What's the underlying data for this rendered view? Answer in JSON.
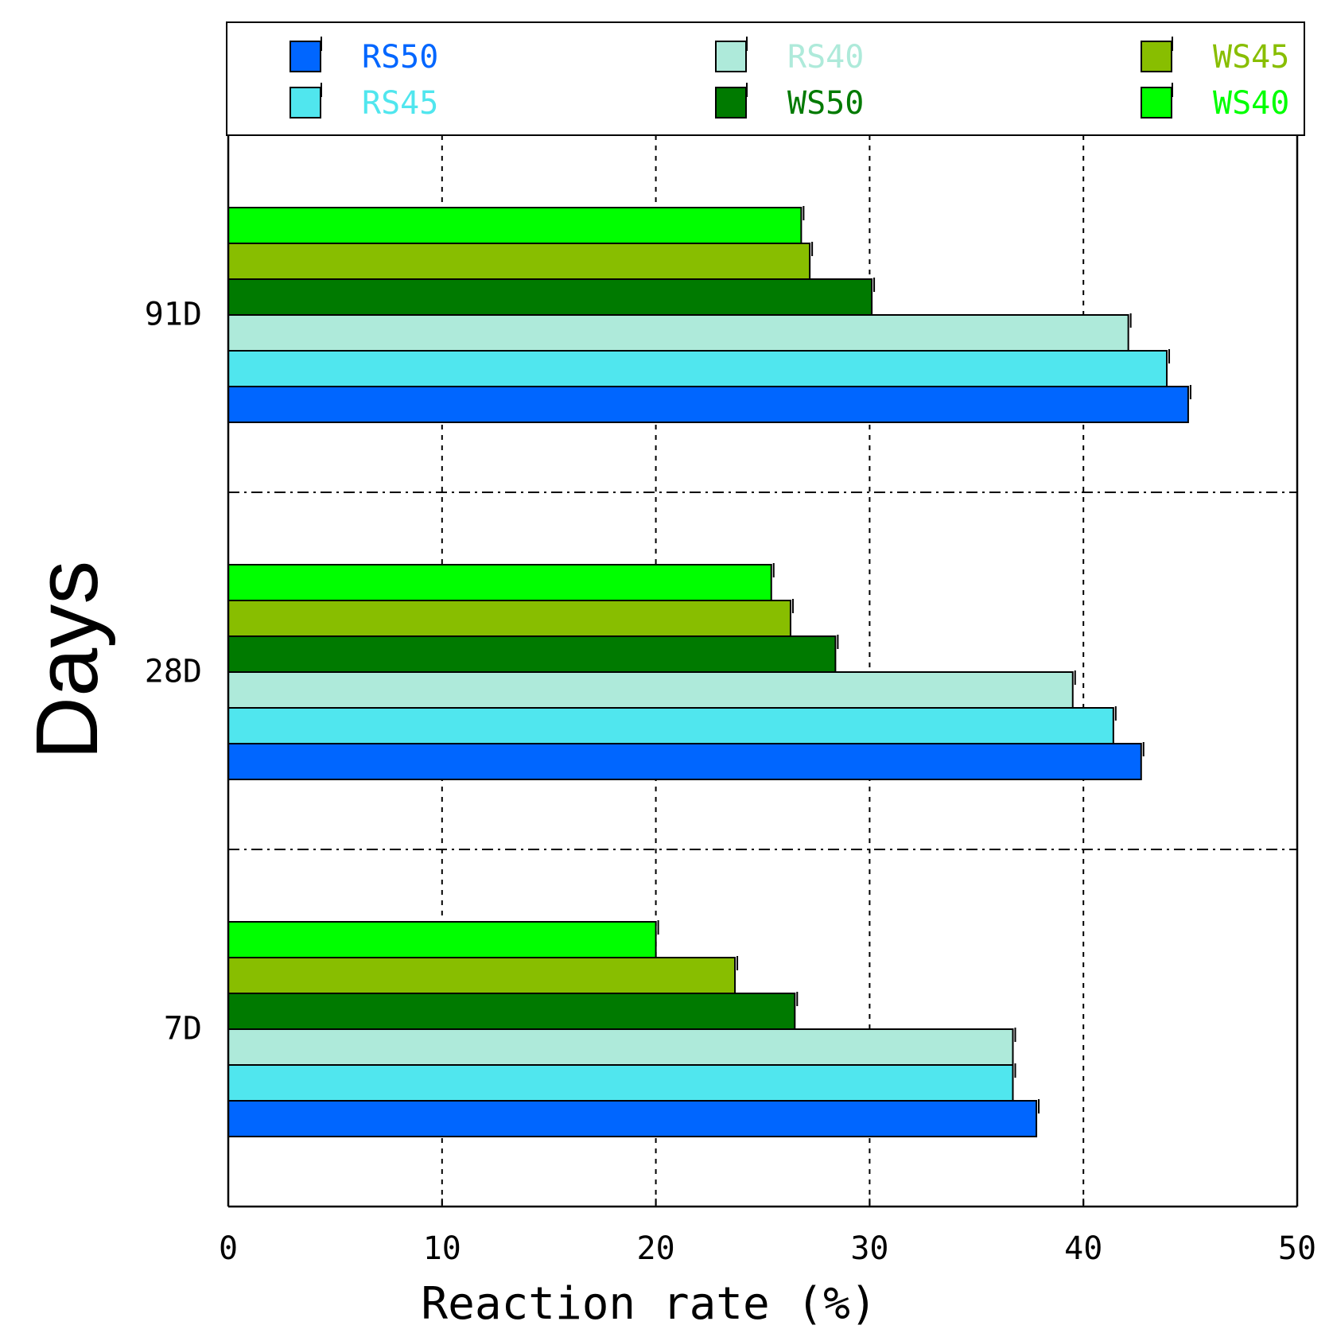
{
  "chart_data": {
    "type": "bar",
    "orientation": "horizontal",
    "title": "",
    "xlabel": "Reaction rate  (%)",
    "ylabel": "Days",
    "xlim": [
      0,
      50
    ],
    "xticks": [
      0,
      10,
      20,
      30,
      40,
      50
    ],
    "xtick_labels": [
      "0",
      "10",
      "20",
      "30",
      "40",
      "50"
    ],
    "categories": [
      "7D",
      "28D",
      "91D"
    ],
    "grid": true,
    "legend_position": "top",
    "series": [
      {
        "name": "RS50",
        "color": "#0066FF",
        "values": [
          37.8,
          42.7,
          44.9
        ]
      },
      {
        "name": "RS45",
        "color": "#50E6EE",
        "values": [
          36.7,
          41.4,
          43.9
        ]
      },
      {
        "name": "RS40",
        "color": "#AEEADA",
        "values": [
          36.7,
          39.5,
          42.1
        ]
      },
      {
        "name": "WS50",
        "color": "#007A00",
        "values": [
          26.5,
          28.4,
          30.1
        ]
      },
      {
        "name": "WS45",
        "color": "#88BE00",
        "values": [
          23.7,
          26.3,
          27.2
        ]
      },
      {
        "name": "WS40",
        "color": "#00FF00",
        "values": [
          20.0,
          25.4,
          26.8
        ]
      }
    ]
  }
}
